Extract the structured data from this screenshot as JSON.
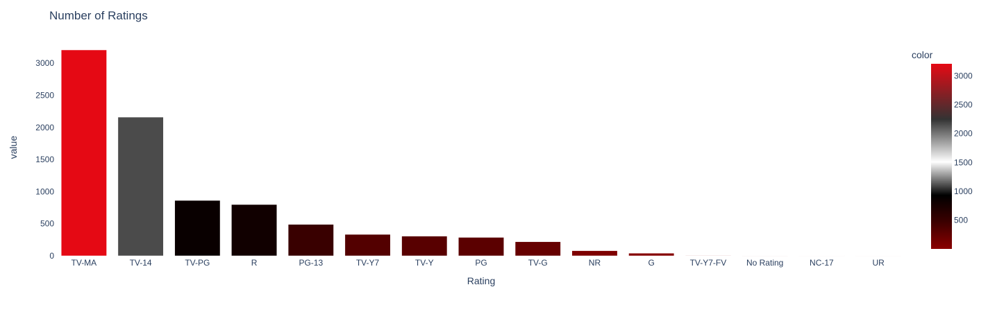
{
  "chart_data": {
    "type": "bar",
    "title": "Number of Ratings",
    "xlabel": "Rating",
    "ylabel": "value",
    "categories": [
      "TV-MA",
      "TV-14",
      "TV-PG",
      "R",
      "PG-13",
      "TV-Y7",
      "TV-Y",
      "PG",
      "TV-G",
      "NR",
      "G",
      "TV-Y7-FV",
      "No Rating",
      "NC-17",
      "UR"
    ],
    "values": [
      3207,
      2160,
      863,
      799,
      490,
      334,
      307,
      287,
      220,
      80,
      41,
      6,
      4,
      3,
      3
    ],
    "ylim": [
      0,
      3380
    ],
    "yticks": [
      0,
      500,
      1000,
      1500,
      2000,
      2500,
      3000
    ],
    "grid": false,
    "colorbar": {
      "title": "color",
      "ticks": [
        500,
        1000,
        1500,
        2000,
        2500,
        3000
      ],
      "range": [
        3,
        3207
      ],
      "stops": [
        {
          "at": 0.0,
          "color": "#8b0000"
        },
        {
          "at": 0.15,
          "color": "#3a0000"
        },
        {
          "at": 0.29,
          "color": "#000000"
        },
        {
          "at": 0.47,
          "color": "#ffffff"
        },
        {
          "at": 0.7,
          "color": "#333333"
        },
        {
          "at": 1.0,
          "color": "#e50914"
        }
      ]
    }
  }
}
